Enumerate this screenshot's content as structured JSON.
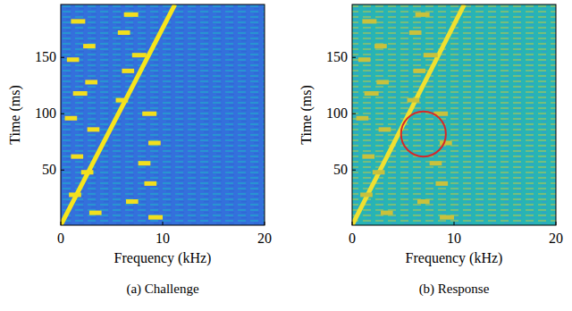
{
  "chart_data": [
    {
      "type": "spectrogram",
      "title": "(a) Challenge",
      "x_label": "Frequency (kHz)",
      "y_label": "Time (ms)",
      "xlim": [
        0,
        20
      ],
      "xticks": [
        0,
        10,
        20
      ],
      "ylim": [
        1,
        197
      ],
      "yticks": [
        50,
        100,
        150
      ],
      "color": "#3470dc",
      "series": [
        {
          "type": "line",
          "color": "#f7e51c",
          "x": [
            0,
            11.2
          ],
          "values": [
            1,
            197
          ]
        },
        {
          "type": "rect",
          "color": "#f2df1e",
          "x_start": [
            1.0,
            2.2,
            0.6,
            2.4,
            1.2,
            0.4,
            2.6,
            1.0,
            2.0,
            0.8,
            2.8,
            6.2,
            5.6,
            7.0,
            6.0,
            5.4,
            8.0,
            8.6,
            7.6,
            8.2,
            6.4,
            8.6
          ],
          "x_end": [
            2.4,
            3.4,
            1.8,
            3.6,
            2.6,
            1.6,
            3.8,
            2.2,
            3.2,
            2.0,
            4.0,
            7.6,
            6.8,
            8.4,
            7.2,
            6.6,
            9.4,
            9.8,
            8.8,
            9.4,
            7.6,
            10.0
          ],
          "y_start": [
            180,
            158,
            146,
            126,
            116,
            94,
            84,
            60,
            46,
            26,
            10,
            186,
            170,
            150,
            136,
            110,
            98,
            72,
            54,
            36,
            20,
            6
          ],
          "y_end": [
            184,
            162,
            150,
            130,
            120,
            98,
            88,
            64,
            50,
            30,
            14,
            190,
            174,
            154,
            140,
            114,
            102,
            76,
            58,
            40,
            24,
            10
          ]
        }
      ]
    },
    {
      "type": "spectrogram",
      "title": "(b) Response",
      "x_label": "Frequency (kHz)",
      "y_label": "Time (ms)",
      "xlim": [
        0,
        20
      ],
      "xticks": [
        0,
        10,
        20
      ],
      "ylim": [
        1,
        197
      ],
      "yticks": [
        50,
        100,
        150
      ],
      "color": "#27b4b4",
      "series": [
        {
          "type": "line",
          "color": "#f0e030",
          "x": [
            0,
            11.0
          ],
          "values": [
            1,
            197
          ]
        },
        {
          "type": "rect",
          "color": "#c9c13c",
          "x_start": [
            1.0,
            2.2,
            0.6,
            2.4,
            1.2,
            0.4,
            2.6,
            1.0,
            2.0,
            0.8,
            2.8,
            6.2,
            5.6,
            7.0,
            6.0,
            5.4,
            8.0,
            8.6,
            7.6,
            8.2,
            6.4,
            8.6
          ],
          "x_end": [
            2.4,
            3.4,
            1.8,
            3.6,
            2.6,
            1.6,
            3.8,
            2.2,
            3.2,
            2.0,
            4.0,
            7.6,
            6.8,
            8.4,
            7.2,
            6.6,
            9.4,
            9.8,
            8.8,
            9.4,
            7.6,
            10.0
          ],
          "y_start": [
            180,
            158,
            146,
            126,
            116,
            94,
            84,
            60,
            46,
            26,
            10,
            186,
            170,
            150,
            136,
            110,
            98,
            72,
            54,
            36,
            20,
            6
          ],
          "y_end": [
            184,
            162,
            150,
            130,
            120,
            98,
            88,
            64,
            50,
            30,
            14,
            190,
            174,
            154,
            140,
            114,
            102,
            76,
            58,
            40,
            24,
            10
          ]
        }
      ],
      "annotations": [
        {
          "shape": "circle",
          "color": "#d62728",
          "x": 7,
          "y": 82,
          "rx": 2.2,
          "ry": 20
        }
      ]
    }
  ]
}
